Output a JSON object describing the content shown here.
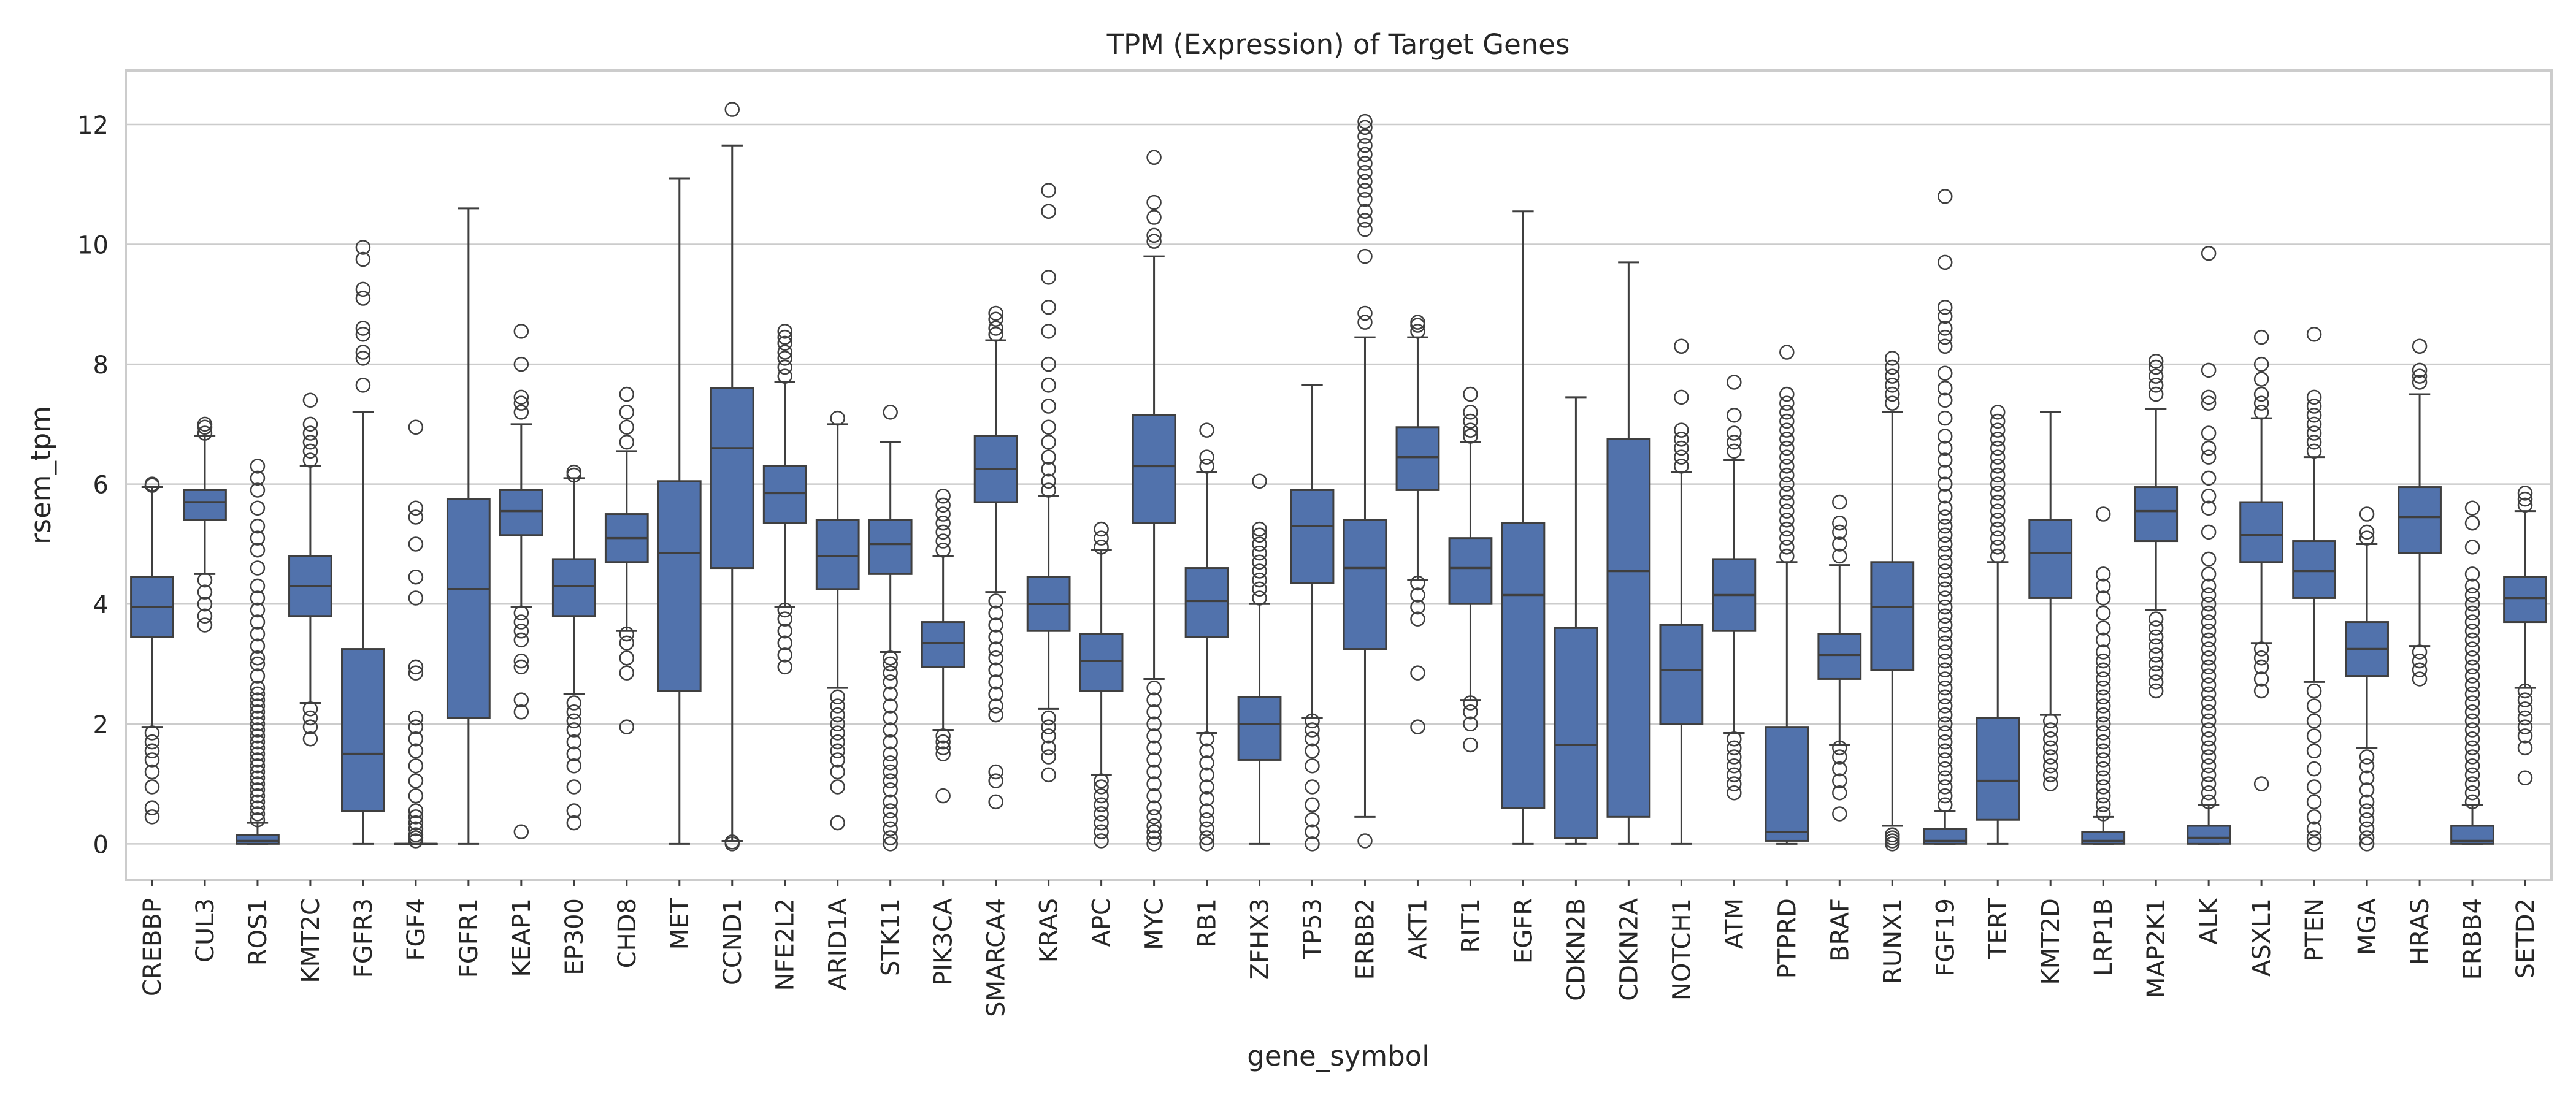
{
  "chart_data": {
    "type": "box",
    "title": "TPM (Expression) of Target Genes",
    "xlabel": "gene_symbol",
    "ylabel": "rsem_tpm",
    "ylim": [
      -0.6,
      12.9
    ],
    "yticks": [
      0,
      2,
      4,
      6,
      8,
      10,
      12
    ],
    "grid": "horizontal",
    "color": "#5172ac",
    "edge_color": "#3f3f3f",
    "categories": [
      "CREBBP",
      "CUL3",
      "ROS1",
      "KMT2C",
      "FGFR3",
      "FGF4",
      "FGFR1",
      "KEAP1",
      "EP300",
      "CHD8",
      "MET",
      "CCND1",
      "NFE2L2",
      "ARID1A",
      "STK11",
      "PIK3CA",
      "SMARCA4",
      "KRAS",
      "APC",
      "MYC",
      "RB1",
      "ZFHX3",
      "TP53",
      "ERBB2",
      "AKT1",
      "RIT1",
      "EGFR",
      "CDKN2B",
      "CDKN2A",
      "NOTCH1",
      "ATM",
      "PTPRD",
      "BRAF",
      "RUNX1",
      "FGF19",
      "TERT",
      "KMT2D",
      "LRP1B",
      "MAP2K1",
      "ALK",
      "ASXL1",
      "PTEN",
      "MGA",
      "HRAS",
      "ERBB4",
      "SETD2"
    ],
    "boxes": [
      {
        "gene": "CREBBP",
        "whislo": 1.95,
        "q1": 3.45,
        "med": 3.95,
        "q3": 4.45,
        "whishi": 5.95,
        "fliers": [
          0.45,
          0.6,
          0.95,
          1.2,
          1.4,
          1.55,
          1.7,
          1.85,
          5.98,
          6.0
        ]
      },
      {
        "gene": "CUL3",
        "whislo": 4.5,
        "q1": 5.4,
        "med": 5.7,
        "q3": 5.9,
        "whishi": 6.8,
        "fliers": [
          3.65,
          3.8,
          4.0,
          4.2,
          4.4,
          6.85,
          6.95,
          7.0
        ]
      },
      {
        "gene": "ROS1",
        "whislo": 0.0,
        "q1": 0.0,
        "med": 0.05,
        "q3": 0.15,
        "whishi": 0.35,
        "fliers": [
          0.4,
          0.5,
          0.6,
          0.7,
          0.8,
          0.9,
          1.0,
          1.1,
          1.2,
          1.3,
          1.4,
          1.5,
          1.6,
          1.7,
          1.8,
          1.9,
          2.0,
          2.1,
          2.2,
          2.3,
          2.4,
          2.5,
          2.6,
          2.8,
          3.0,
          3.1,
          3.3,
          3.5,
          3.7,
          3.9,
          4.1,
          4.3,
          4.6,
          4.9,
          5.1,
          5.3,
          5.6,
          5.9,
          6.1,
          6.3
        ]
      },
      {
        "gene": "KMT2C",
        "whislo": 2.35,
        "q1": 3.8,
        "med": 4.3,
        "q3": 4.8,
        "whishi": 6.3,
        "fliers": [
          1.75,
          1.95,
          2.1,
          2.25,
          6.4,
          6.55,
          6.7,
          6.85,
          7.0,
          7.4
        ]
      },
      {
        "gene": "FGFR3",
        "whislo": 0.0,
        "q1": 0.55,
        "med": 1.5,
        "q3": 3.25,
        "whishi": 7.2,
        "fliers": [
          7.65,
          8.1,
          8.2,
          8.5,
          8.6,
          9.1,
          9.25,
          9.75,
          9.95
        ]
      },
      {
        "gene": "FGF4",
        "whislo": 0.0,
        "q1": 0.0,
        "med": 0.0,
        "q3": 0.0,
        "whishi": 0.0,
        "fliers": [
          0.05,
          0.1,
          0.15,
          0.25,
          0.35,
          0.45,
          0.55,
          0.8,
          1.05,
          1.3,
          1.55,
          1.75,
          1.95,
          2.1,
          2.85,
          2.95,
          4.1,
          4.45,
          5.0,
          5.45,
          5.6,
          6.95
        ]
      },
      {
        "gene": "FGFR1",
        "whislo": 0.0,
        "q1": 2.1,
        "med": 4.25,
        "q3": 5.75,
        "whishi": 10.6,
        "fliers": []
      },
      {
        "gene": "KEAP1",
        "whislo": 3.95,
        "q1": 5.15,
        "med": 5.55,
        "q3": 5.9,
        "whishi": 7.0,
        "fliers": [
          0.2,
          2.2,
          2.4,
          2.95,
          3.05,
          3.4,
          3.55,
          3.7,
          3.85,
          7.2,
          7.35,
          7.45,
          8.0,
          8.55
        ]
      },
      {
        "gene": "EP300",
        "whislo": 2.5,
        "q1": 3.8,
        "med": 4.3,
        "q3": 4.75,
        "whishi": 6.1,
        "fliers": [
          0.35,
          0.55,
          0.95,
          1.3,
          1.5,
          1.7,
          1.9,
          2.05,
          2.2,
          2.35,
          6.15,
          6.2
        ]
      },
      {
        "gene": "CHD8",
        "whislo": 3.55,
        "q1": 4.7,
        "med": 5.1,
        "q3": 5.5,
        "whishi": 6.55,
        "fliers": [
          1.95,
          2.85,
          3.1,
          3.35,
          3.5,
          6.7,
          6.95,
          7.2,
          7.5
        ]
      },
      {
        "gene": "MET",
        "whislo": 0.0,
        "q1": 2.55,
        "med": 4.85,
        "q3": 6.05,
        "whishi": 11.1,
        "fliers": []
      },
      {
        "gene": "CCND1",
        "whislo": 0.05,
        "q1": 4.6,
        "med": 6.6,
        "q3": 7.6,
        "whishi": 11.65,
        "fliers": [
          0.0,
          0.03,
          12.25
        ]
      },
      {
        "gene": "NFE2L2",
        "whislo": 3.95,
        "q1": 5.35,
        "med": 5.85,
        "q3": 6.3,
        "whishi": 7.7,
        "fliers": [
          2.95,
          3.15,
          3.35,
          3.55,
          3.75,
          3.9,
          7.8,
          7.95,
          8.1,
          8.2,
          8.35,
          8.45,
          8.55
        ]
      },
      {
        "gene": "ARID1A",
        "whislo": 2.6,
        "q1": 4.25,
        "med": 4.8,
        "q3": 5.4,
        "whishi": 7.0,
        "fliers": [
          0.35,
          0.95,
          1.2,
          1.4,
          1.55,
          1.7,
          1.85,
          2.0,
          2.15,
          2.3,
          2.45,
          7.1
        ]
      },
      {
        "gene": "STK11",
        "whislo": 3.2,
        "q1": 4.5,
        "med": 5.0,
        "q3": 5.4,
        "whishi": 6.7,
        "fliers": [
          0.0,
          0.1,
          0.25,
          0.4,
          0.55,
          0.7,
          0.9,
          1.05,
          1.2,
          1.35,
          1.5,
          1.7,
          1.9,
          2.1,
          2.3,
          2.5,
          2.7,
          2.85,
          3.0,
          3.1,
          7.2
        ]
      },
      {
        "gene": "PIK3CA",
        "whislo": 1.9,
        "q1": 2.95,
        "med": 3.35,
        "q3": 3.7,
        "whishi": 4.8,
        "fliers": [
          0.8,
          1.5,
          1.6,
          1.7,
          1.8,
          4.9,
          5.05,
          5.2,
          5.35,
          5.5,
          5.65,
          5.8
        ]
      },
      {
        "gene": "SMARCA4",
        "whislo": 4.2,
        "q1": 5.7,
        "med": 6.25,
        "q3": 6.8,
        "whishi": 8.4,
        "fliers": [
          0.7,
          1.05,
          1.2,
          2.15,
          2.3,
          2.5,
          2.7,
          2.9,
          3.1,
          3.25,
          3.45,
          3.65,
          3.85,
          4.05,
          8.5,
          8.6,
          8.75,
          8.85
        ]
      },
      {
        "gene": "KRAS",
        "whislo": 2.25,
        "q1": 3.55,
        "med": 4.0,
        "q3": 4.45,
        "whishi": 5.8,
        "fliers": [
          1.15,
          1.45,
          1.6,
          1.8,
          1.95,
          2.1,
          5.9,
          6.05,
          6.25,
          6.45,
          6.7,
          6.95,
          7.3,
          7.65,
          8.0,
          8.55,
          8.95,
          9.45,
          10.55,
          10.9
        ]
      },
      {
        "gene": "APC",
        "whislo": 1.15,
        "q1": 2.55,
        "med": 3.05,
        "q3": 3.5,
        "whishi": 4.9,
        "fliers": [
          0.05,
          0.2,
          0.35,
          0.5,
          0.65,
          0.8,
          0.95,
          1.05,
          4.95,
          5.1,
          5.25
        ]
      },
      {
        "gene": "MYC",
        "whislo": 2.75,
        "q1": 5.35,
        "med": 6.3,
        "q3": 7.15,
        "whishi": 9.8,
        "fliers": [
          0.0,
          0.1,
          0.2,
          0.3,
          0.45,
          0.6,
          0.8,
          1.0,
          1.2,
          1.4,
          1.6,
          1.8,
          2.0,
          2.2,
          2.4,
          2.6,
          10.05,
          10.15,
          10.45,
          10.7,
          11.45
        ]
      },
      {
        "gene": "RB1",
        "whislo": 1.85,
        "q1": 3.45,
        "med": 4.05,
        "q3": 4.6,
        "whishi": 6.2,
        "fliers": [
          0.0,
          0.1,
          0.25,
          0.4,
          0.55,
          0.75,
          0.95,
          1.15,
          1.35,
          1.55,
          1.75,
          6.3,
          6.45,
          6.9
        ]
      },
      {
        "gene": "ZFHX3",
        "whislo": 0.0,
        "q1": 1.4,
        "med": 2.0,
        "q3": 2.45,
        "whishi": 4.0,
        "fliers": [
          4.1,
          4.25,
          4.4,
          4.55,
          4.7,
          4.85,
          5.0,
          5.15,
          5.25,
          6.05
        ]
      },
      {
        "gene": "TP53",
        "whislo": 2.1,
        "q1": 4.35,
        "med": 5.3,
        "q3": 5.9,
        "whishi": 7.65,
        "fliers": [
          0.0,
          0.2,
          0.4,
          0.65,
          0.95,
          1.3,
          1.55,
          1.75,
          1.9,
          2.05
        ]
      },
      {
        "gene": "ERBB2",
        "whislo": 0.45,
        "q1": 3.25,
        "med": 4.6,
        "q3": 5.4,
        "whishi": 8.45,
        "fliers": [
          0.05,
          8.7,
          8.85,
          9.8,
          10.25,
          10.4,
          10.55,
          10.75,
          10.9,
          11.05,
          11.2,
          11.35,
          11.5,
          11.65,
          11.8,
          11.95,
          12.05
        ]
      },
      {
        "gene": "AKT1",
        "whislo": 4.4,
        "q1": 5.9,
        "med": 6.45,
        "q3": 6.95,
        "whishi": 8.45,
        "fliers": [
          1.95,
          2.85,
          3.75,
          3.95,
          4.15,
          4.35,
          8.55,
          8.65,
          8.7
        ]
      },
      {
        "gene": "RIT1",
        "whislo": 2.4,
        "q1": 4.0,
        "med": 4.6,
        "q3": 5.1,
        "whishi": 6.7,
        "fliers": [
          1.65,
          2.0,
          2.2,
          2.35,
          6.8,
          6.9,
          7.05,
          7.2,
          7.5
        ]
      },
      {
        "gene": "EGFR",
        "whislo": 0.0,
        "q1": 0.6,
        "med": 4.15,
        "q3": 5.35,
        "whishi": 10.55,
        "fliers": []
      },
      {
        "gene": "CDKN2B",
        "whislo": 0.0,
        "q1": 0.1,
        "med": 1.65,
        "q3": 3.6,
        "whishi": 7.45,
        "fliers": []
      },
      {
        "gene": "CDKN2A",
        "whislo": 0.0,
        "q1": 0.45,
        "med": 4.55,
        "q3": 6.75,
        "whishi": 9.7,
        "fliers": []
      },
      {
        "gene": "NOTCH1",
        "whislo": 0.0,
        "q1": 2.0,
        "med": 2.9,
        "q3": 3.65,
        "whishi": 6.2,
        "fliers": [
          6.3,
          6.45,
          6.6,
          6.75,
          6.9,
          7.45,
          8.3
        ]
      },
      {
        "gene": "ATM",
        "whislo": 1.85,
        "q1": 3.55,
        "med": 4.15,
        "q3": 4.75,
        "whishi": 6.4,
        "fliers": [
          0.85,
          1.0,
          1.15,
          1.3,
          1.45,
          1.6,
          1.75,
          6.55,
          6.7,
          6.85,
          7.15,
          7.7
        ]
      },
      {
        "gene": "PTPRD",
        "whislo": 0.0,
        "q1": 0.05,
        "med": 0.2,
        "q3": 1.95,
        "whishi": 4.7,
        "fliers": [
          4.8,
          4.95,
          5.1,
          5.25,
          5.4,
          5.55,
          5.7,
          5.85,
          6.0,
          6.15,
          6.3,
          6.45,
          6.6,
          6.75,
          6.9,
          7.05,
          7.2,
          7.35,
          7.5,
          8.2
        ]
      },
      {
        "gene": "BRAF",
        "whislo": 1.65,
        "q1": 2.75,
        "med": 3.15,
        "q3": 3.5,
        "whishi": 4.65,
        "fliers": [
          0.5,
          0.85,
          1.05,
          1.25,
          1.45,
          1.6,
          4.8,
          5.0,
          5.2,
          5.35,
          5.7
        ]
      },
      {
        "gene": "RUNX1",
        "whislo": 0.3,
        "q1": 2.9,
        "med": 3.95,
        "q3": 4.7,
        "whishi": 7.2,
        "fliers": [
          0.0,
          0.05,
          0.1,
          0.15,
          7.35,
          7.5,
          7.65,
          7.8,
          7.95,
          8.1
        ]
      },
      {
        "gene": "FGF19",
        "whislo": 0.0,
        "q1": 0.0,
        "med": 0.05,
        "q3": 0.25,
        "whishi": 0.55,
        "fliers": [
          0.65,
          0.8,
          0.95,
          1.1,
          1.25,
          1.4,
          1.55,
          1.7,
          1.85,
          2.0,
          2.15,
          2.3,
          2.45,
          2.6,
          2.75,
          2.9,
          3.05,
          3.2,
          3.35,
          3.5,
          3.65,
          3.8,
          3.95,
          4.1,
          4.25,
          4.4,
          4.55,
          4.7,
          4.85,
          5.0,
          5.15,
          5.3,
          5.45,
          5.6,
          5.8,
          6.0,
          6.2,
          6.4,
          6.6,
          6.8,
          7.1,
          7.4,
          7.6,
          7.85,
          8.3,
          8.45,
          8.6,
          8.8,
          8.95,
          9.7,
          10.8
        ]
      },
      {
        "gene": "TERT",
        "whislo": 0.0,
        "q1": 0.4,
        "med": 1.05,
        "q3": 2.1,
        "whishi": 4.7,
        "fliers": [
          4.8,
          4.95,
          5.1,
          5.25,
          5.4,
          5.55,
          5.7,
          5.85,
          6.0,
          6.15,
          6.3,
          6.45,
          6.6,
          6.75,
          6.9,
          7.05,
          7.2
        ]
      },
      {
        "gene": "KMT2D",
        "whislo": 2.15,
        "q1": 4.1,
        "med": 4.85,
        "q3": 5.4,
        "whishi": 7.2,
        "fliers": [
          1.0,
          1.15,
          1.3,
          1.45,
          1.6,
          1.75,
          1.9,
          2.05
        ]
      },
      {
        "gene": "LRP1B",
        "whislo": 0.0,
        "q1": 0.0,
        "med": 0.05,
        "q3": 0.2,
        "whishi": 0.45,
        "fliers": [
          0.5,
          0.65,
          0.8,
          0.95,
          1.1,
          1.25,
          1.4,
          1.55,
          1.7,
          1.85,
          2.0,
          2.15,
          2.3,
          2.45,
          2.6,
          2.75,
          2.9,
          3.05,
          3.2,
          3.4,
          3.6,
          3.85,
          4.1,
          4.3,
          4.5,
          5.5
        ]
      },
      {
        "gene": "MAP2K1",
        "whislo": 3.9,
        "q1": 5.05,
        "med": 5.55,
        "q3": 5.95,
        "whishi": 7.25,
        "fliers": [
          2.55,
          2.7,
          2.85,
          3.0,
          3.15,
          3.3,
          3.45,
          3.6,
          3.75,
          7.5,
          7.65,
          7.8,
          7.95,
          8.05
        ]
      },
      {
        "gene": "ALK",
        "whislo": 0.0,
        "q1": 0.0,
        "med": 0.1,
        "q3": 0.3,
        "whishi": 0.65,
        "fliers": [
          0.7,
          0.85,
          1.0,
          1.15,
          1.3,
          1.45,
          1.6,
          1.75,
          1.9,
          2.05,
          2.2,
          2.35,
          2.5,
          2.65,
          2.8,
          2.95,
          3.1,
          3.25,
          3.4,
          3.55,
          3.7,
          3.85,
          4.0,
          4.15,
          4.3,
          4.5,
          4.75,
          5.2,
          5.6,
          5.8,
          6.1,
          6.45,
          6.6,
          6.85,
          7.35,
          7.45,
          7.9,
          9.85
        ]
      },
      {
        "gene": "ASXL1",
        "whislo": 3.35,
        "q1": 4.7,
        "med": 5.15,
        "q3": 5.7,
        "whishi": 7.1,
        "fliers": [
          1.0,
          2.55,
          2.75,
          2.95,
          3.1,
          3.25,
          7.2,
          7.35,
          7.5,
          7.75,
          8.0,
          8.45
        ]
      },
      {
        "gene": "PTEN",
        "whislo": 2.7,
        "q1": 4.1,
        "med": 4.55,
        "q3": 5.05,
        "whishi": 6.45,
        "fliers": [
          0.0,
          0.1,
          0.25,
          0.45,
          0.7,
          0.95,
          1.25,
          1.55,
          1.8,
          2.05,
          2.3,
          2.55,
          6.55,
          6.7,
          6.85,
          7.0,
          7.15,
          7.3,
          7.45,
          8.5
        ]
      },
      {
        "gene": "MGA",
        "whislo": 1.6,
        "q1": 2.8,
        "med": 3.25,
        "q3": 3.7,
        "whishi": 5.0,
        "fliers": [
          0.0,
          0.1,
          0.25,
          0.4,
          0.55,
          0.7,
          0.9,
          1.1,
          1.3,
          1.45,
          5.1,
          5.2,
          5.5
        ]
      },
      {
        "gene": "HRAS",
        "whislo": 3.3,
        "q1": 4.85,
        "med": 5.45,
        "q3": 5.95,
        "whishi": 7.5,
        "fliers": [
          2.75,
          2.9,
          3.05,
          3.2,
          7.7,
          7.8,
          7.9,
          8.3
        ]
      },
      {
        "gene": "ERBB4",
        "whislo": 0.0,
        "q1": 0.0,
        "med": 0.05,
        "q3": 0.3,
        "whishi": 0.65,
        "fliers": [
          0.7,
          0.85,
          1.0,
          1.15,
          1.3,
          1.45,
          1.6,
          1.75,
          1.9,
          2.05,
          2.2,
          2.35,
          2.5,
          2.65,
          2.8,
          2.95,
          3.1,
          3.25,
          3.4,
          3.55,
          3.7,
          3.85,
          4.0,
          4.15,
          4.3,
          4.5,
          4.95,
          5.35,
          5.6
        ]
      },
      {
        "gene": "SETD2",
        "whislo": 2.6,
        "q1": 3.7,
        "med": 4.1,
        "q3": 4.45,
        "whishi": 5.55,
        "fliers": [
          1.1,
          1.6,
          1.8,
          1.95,
          2.1,
          2.25,
          2.4,
          2.55,
          5.65,
          5.75,
          5.85
        ]
      }
    ]
  }
}
